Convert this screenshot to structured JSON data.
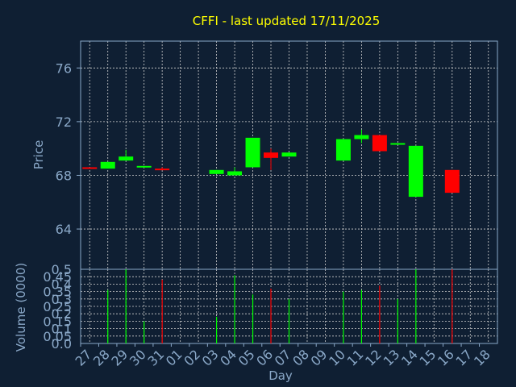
{
  "colors": {
    "background": "#0f1f33",
    "up": "#00ff00",
    "down": "#ff0000",
    "axis": "#8aa8c8",
    "title": "#ffff00",
    "grid": "#d0d0d0"
  },
  "chart_data": [
    {
      "type": "candlestick",
      "title": "CFFI - last updated 17/11/2025",
      "ylabel": "Price",
      "ylim": [
        61,
        78
      ],
      "yticks": [
        64,
        68,
        72,
        76
      ],
      "grid": true,
      "x_count": 23,
      "candles": [
        {
          "i": 0,
          "open": 68.6,
          "close": 68.5,
          "high": 68.6,
          "low": 68.5
        },
        {
          "i": 1,
          "open": 68.5,
          "close": 69.0,
          "high": 69.0,
          "low": 68.5
        },
        {
          "i": 2,
          "open": 69.1,
          "close": 69.4,
          "high": 69.9,
          "low": 69.1
        },
        {
          "i": 3,
          "open": 68.6,
          "close": 68.7,
          "high": 68.7,
          "low": 68.6
        },
        {
          "i": 4,
          "open": 68.5,
          "close": 68.4,
          "high": 68.6,
          "low": 68.4
        },
        {
          "i": 7,
          "open": 68.1,
          "close": 68.4,
          "high": 68.4,
          "low": 68.1
        },
        {
          "i": 8,
          "open": 68.0,
          "close": 68.3,
          "high": 68.6,
          "low": 68.0
        },
        {
          "i": 9,
          "open": 68.6,
          "close": 70.8,
          "high": 70.8,
          "low": 68.6
        },
        {
          "i": 10,
          "open": 69.7,
          "close": 69.3,
          "high": 70.0,
          "low": 68.4
        },
        {
          "i": 11,
          "open": 69.4,
          "close": 69.7,
          "high": 69.7,
          "low": 69.4
        },
        {
          "i": 14,
          "open": 69.1,
          "close": 70.7,
          "high": 70.7,
          "low": 69.1
        },
        {
          "i": 15,
          "open": 70.7,
          "close": 71.0,
          "high": 71.4,
          "low": 70.4
        },
        {
          "i": 16,
          "open": 71.0,
          "close": 69.8,
          "high": 71.0,
          "low": 69.8
        },
        {
          "i": 17,
          "open": 70.3,
          "close": 70.4,
          "high": 70.4,
          "low": 70.3
        },
        {
          "i": 18,
          "open": 66.4,
          "close": 70.2,
          "high": 70.2,
          "low": 66.4
        },
        {
          "i": 20,
          "open": 68.4,
          "close": 66.7,
          "high": 68.4,
          "low": 66.7
        }
      ]
    },
    {
      "type": "bar",
      "ylabel": "Volume (0000)",
      "xlabel": "Day",
      "ylim": [
        0,
        0.5
      ],
      "yticks": [
        "0.5",
        "0.45",
        "0.4",
        "0.35",
        "0.3",
        "0.25",
        "0.2",
        "0.15",
        "0.1",
        "0.05",
        "0.0"
      ],
      "ytick_values": [
        0.5,
        0.45,
        0.4,
        0.35,
        0.3,
        0.25,
        0.2,
        0.15,
        0.1,
        0.05,
        0
      ],
      "categories": [
        "27",
        "28",
        "29",
        "30",
        "31",
        "01",
        "02",
        "03",
        "04",
        "05",
        "06",
        "07",
        "08",
        "09",
        "10",
        "11",
        "12",
        "13",
        "14",
        "15",
        "16",
        "17",
        "18"
      ],
      "bars": [
        {
          "i": 1,
          "value": 0.36,
          "dir": "up"
        },
        {
          "i": 2,
          "value": 0.5,
          "dir": "up"
        },
        {
          "i": 3,
          "value": 0.15,
          "dir": "up"
        },
        {
          "i": 4,
          "value": 0.43,
          "dir": "down"
        },
        {
          "i": 7,
          "value": 0.18,
          "dir": "up"
        },
        {
          "i": 8,
          "value": 0.46,
          "dir": "up"
        },
        {
          "i": 9,
          "value": 0.33,
          "dir": "up"
        },
        {
          "i": 10,
          "value": 0.37,
          "dir": "down"
        },
        {
          "i": 11,
          "value": 0.3,
          "dir": "up"
        },
        {
          "i": 14,
          "value": 0.35,
          "dir": "up"
        },
        {
          "i": 15,
          "value": 0.36,
          "dir": "up"
        },
        {
          "i": 16,
          "value": 0.39,
          "dir": "down"
        },
        {
          "i": 17,
          "value": 0.3,
          "dir": "up"
        },
        {
          "i": 18,
          "value": 0.5,
          "dir": "up"
        },
        {
          "i": 20,
          "value": 0.5,
          "dir": "down"
        }
      ]
    }
  ]
}
